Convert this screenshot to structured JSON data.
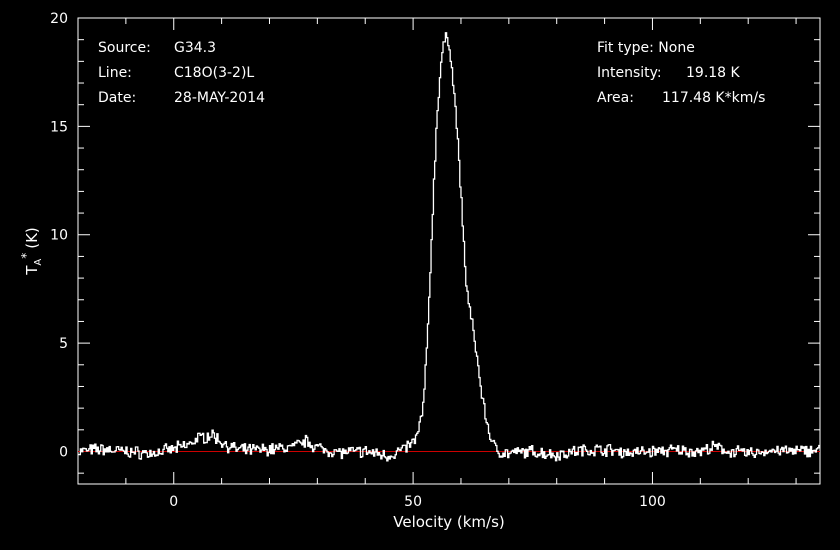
{
  "chart_data": {
    "type": "line",
    "title": "",
    "xlabel": "Velocity (km/s)",
    "ylabel_main": "T",
    "ylabel_sub": "A",
    "ylabel_sup": "*",
    "ylabel_unit": "(K)",
    "xlim": [
      -20,
      135
    ],
    "ylim": [
      -1.5,
      20
    ],
    "xticks": [
      0,
      50,
      100
    ],
    "xtick_labels": [
      "0",
      "50",
      "100"
    ],
    "yticks": [
      0,
      5,
      10,
      15,
      20
    ],
    "ytick_labels": [
      "0",
      "5",
      "10",
      "15",
      "20"
    ],
    "grid": false,
    "baseline": 0,
    "colors": {
      "background": "#000000",
      "axes": "#ffffff",
      "spectrum": "#ffffff",
      "baseline": "#cc0000",
      "text": "#ffffff"
    },
    "series": [
      {
        "x": [
          -20,
          -15,
          -10,
          -5,
          0,
          3,
          5,
          7,
          8,
          9,
          11,
          13,
          15,
          20,
          25,
          27,
          28,
          29,
          31,
          35,
          40,
          45,
          48,
          50,
          51,
          52,
          53,
          54,
          55,
          56,
          57,
          57.5,
          58,
          59,
          60,
          61,
          62,
          63,
          64,
          65,
          66,
          67,
          68,
          70,
          75,
          80,
          85,
          90,
          95,
          100,
          105,
          110,
          113,
          115,
          120,
          125,
          130,
          135
        ],
        "values": [
          0.0,
          0.1,
          0.0,
          -0.1,
          0.1,
          0.3,
          0.6,
          0.7,
          0.8,
          0.6,
          0.3,
          0.1,
          0.05,
          0.1,
          0.2,
          0.4,
          0.5,
          0.3,
          0.1,
          -0.05,
          0.0,
          -0.2,
          0.1,
          0.4,
          0.8,
          1.8,
          5.0,
          10.5,
          15.5,
          18.3,
          19.18,
          18.9,
          18.0,
          15.5,
          12.0,
          8.0,
          6.3,
          5.0,
          3.2,
          1.8,
          0.8,
          0.2,
          0.0,
          -0.1,
          0.0,
          -0.15,
          0.05,
          0.1,
          -0.05,
          0.0,
          0.05,
          0.0,
          0.2,
          0.05,
          -0.1,
          0.05,
          0.0,
          0.1
        ]
      }
    ]
  },
  "info_left": {
    "source_key": "Source:",
    "source_val": "G34.3",
    "line_key": "Line:",
    "line_val": "C18O(3-2)L",
    "date_key": "Date:",
    "date_val": "28-MAY-2014"
  },
  "info_right": {
    "fit_text": "Fit type: None",
    "intensity_key": "Intensity:",
    "intensity_val": "19.18 K",
    "area_key": "Area:",
    "area_val": "117.48 K*km/s"
  }
}
